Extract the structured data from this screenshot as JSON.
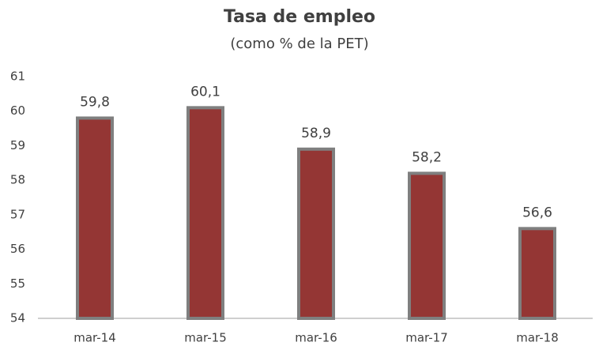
{
  "chart_data": {
    "type": "bar",
    "title": "Tasa de empleo",
    "subtitle": "(como % de la PET)",
    "categories": [
      "mar-14",
      "mar-15",
      "mar-16",
      "mar-17",
      "mar-18"
    ],
    "values": [
      59.8,
      60.1,
      58.9,
      58.2,
      56.6
    ],
    "value_labels": [
      "59,8",
      "60,1",
      "58,9",
      "58,2",
      "56,6"
    ],
    "color": "#943634",
    "ylim": [
      54,
      61
    ],
    "yticks": [
      54,
      55,
      56,
      57,
      58,
      59,
      60,
      61
    ],
    "grid": false
  }
}
